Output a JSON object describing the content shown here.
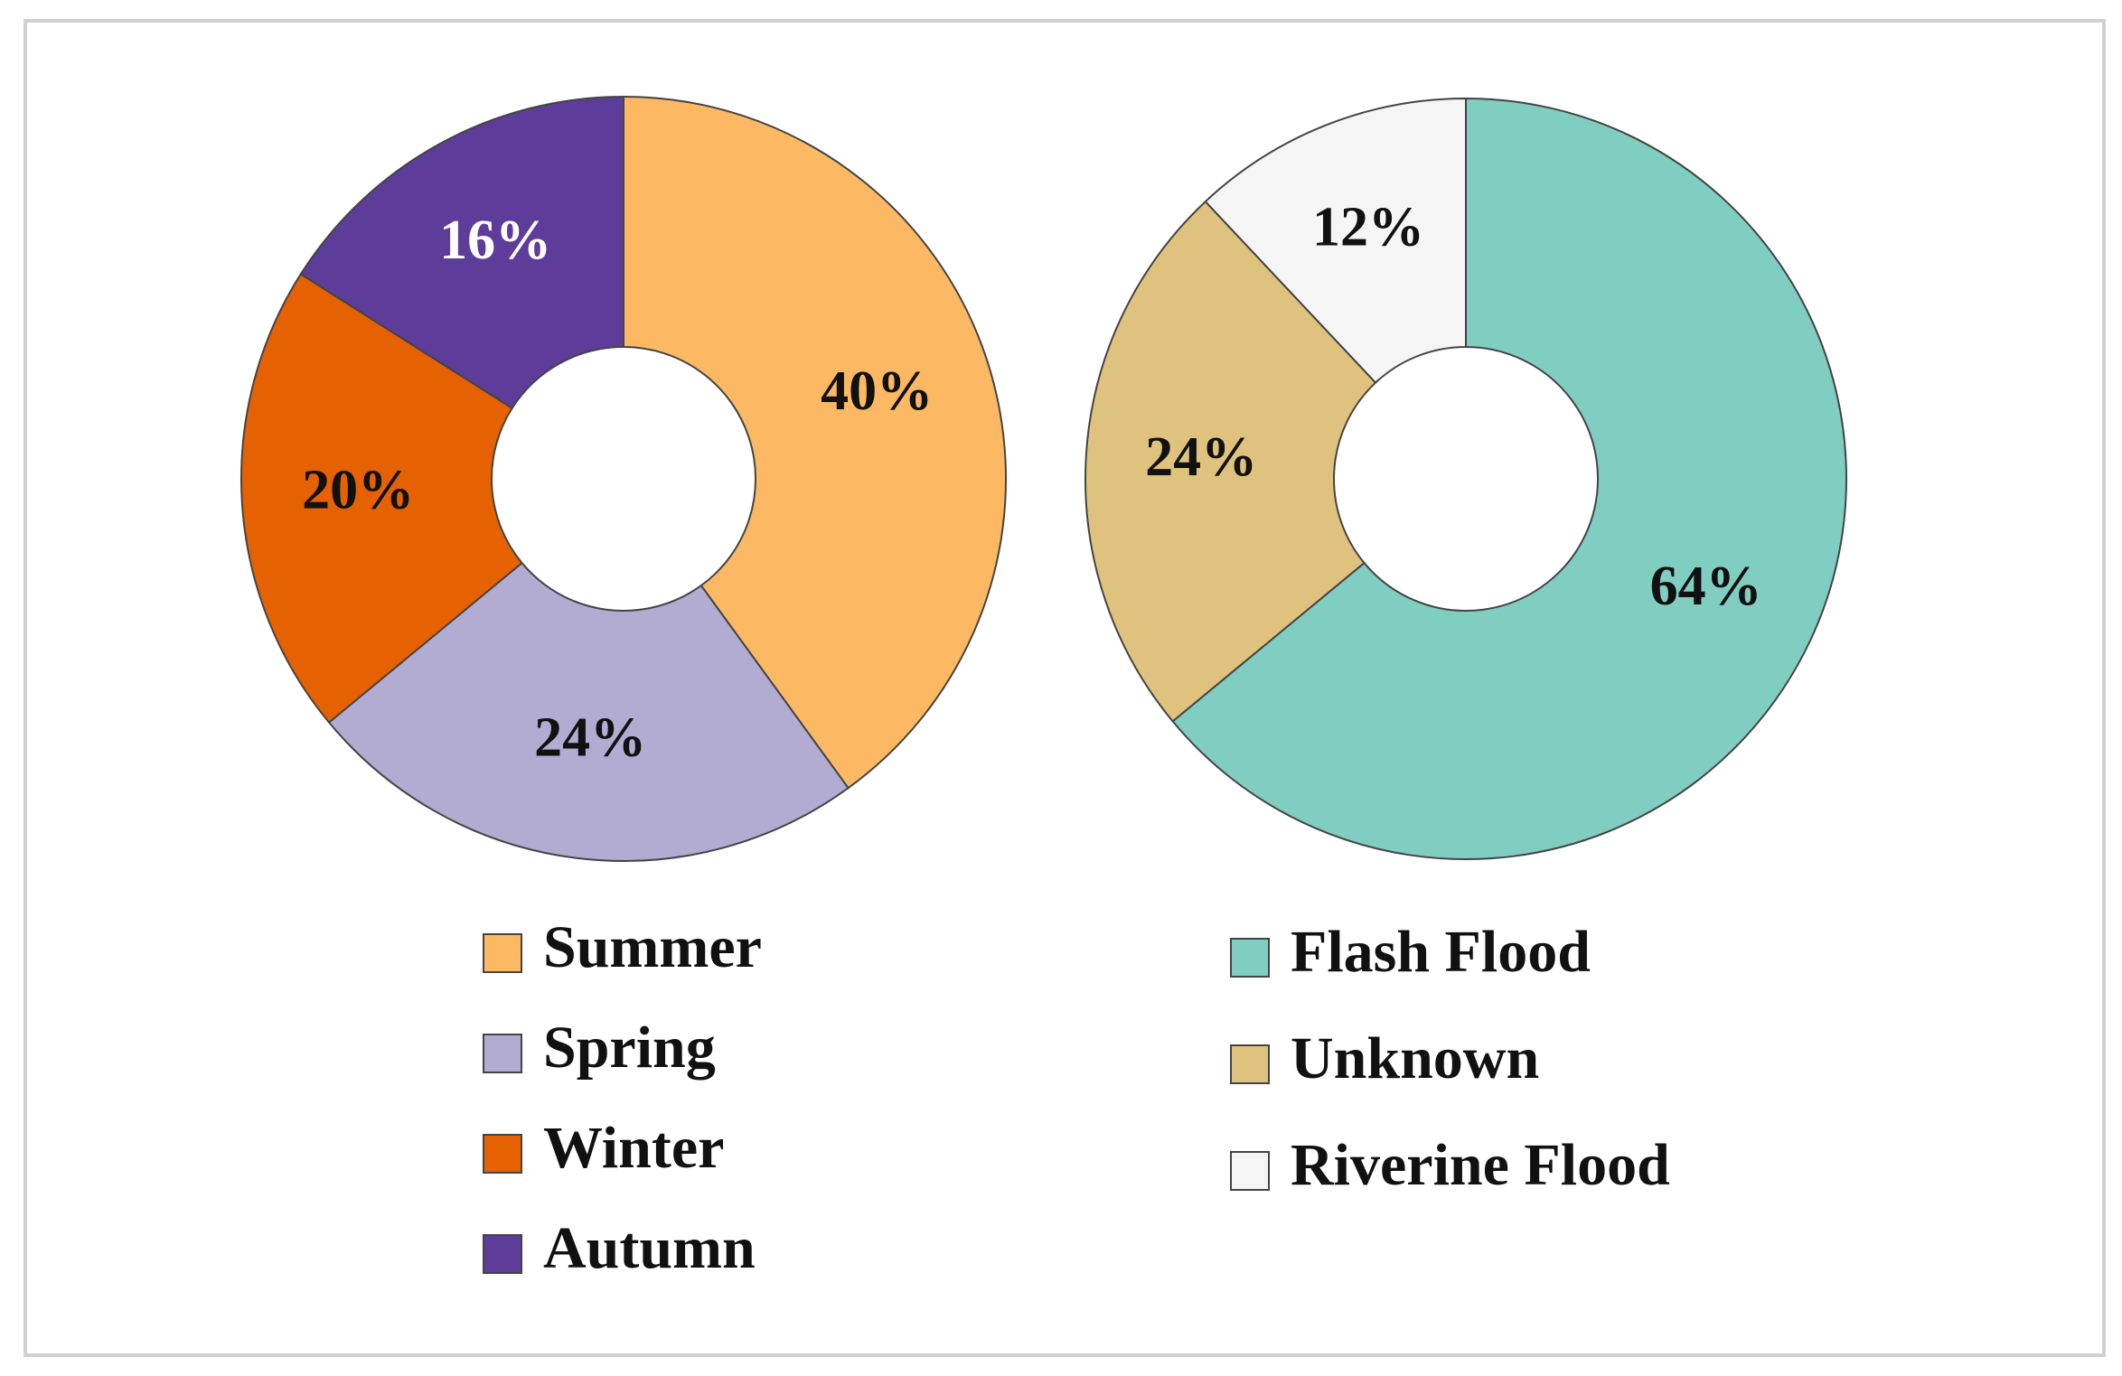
{
  "chart_data": [
    {
      "type": "pie",
      "donut": true,
      "categories": [
        "Summer",
        "Spring",
        "Winter",
        "Autumn"
      ],
      "values": [
        40,
        24,
        20,
        16
      ],
      "value_labels": [
        "40%",
        "24%",
        "20%",
        "16%"
      ],
      "colors": [
        "#fdb863",
        "#b2abd2",
        "#e66101",
        "#5e3c99"
      ]
    },
    {
      "type": "pie",
      "donut": true,
      "categories": [
        "Flash Flood",
        "Unknown",
        "Riverine Flood"
      ],
      "values": [
        64,
        24,
        12
      ],
      "value_labels": [
        "64%",
        "24%",
        "12%"
      ],
      "colors": [
        "#80cdc1",
        "#dfc27d",
        "#f5f5f5"
      ]
    }
  ]
}
